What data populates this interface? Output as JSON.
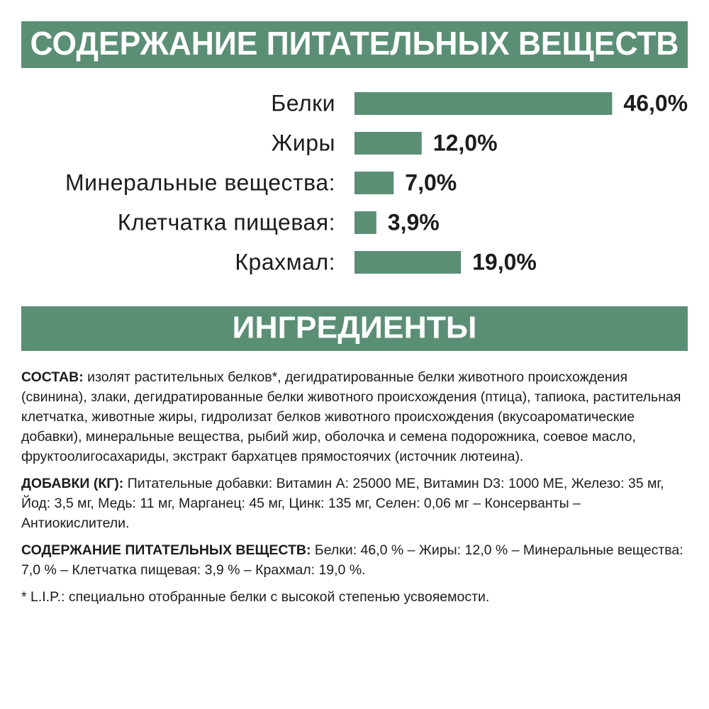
{
  "header": {
    "title": "СОДЕРЖАНИЕ ПИТАТЕЛЬНЫХ ВЕЩЕСТВ"
  },
  "chart_data": {
    "type": "bar",
    "orientation": "horizontal",
    "color": "#5b8f75",
    "categories": [
      "Белки",
      "Жиры",
      "Минеральные вещества:",
      "Клетчатка пищевая:",
      "Крахмал:"
    ],
    "values": [
      46.0,
      12.0,
      7.0,
      3.9,
      19.0
    ],
    "value_labels": [
      "46,0%",
      "12,0%",
      "7,0%",
      "3,9%",
      "19,0%"
    ]
  },
  "ingredients": {
    "title": "ИНГРЕДИЕНТЫ",
    "paragraphs": [
      {
        "label": "СОСТАВ:",
        "text": "изолят растительных белков*, дегидратированные белки животного происхождения (свинина), злаки, дегидратированные белки животного происхождения (птица), тапиока, растительная клетчатка, животные жиры, гидролизат белков животного происхождения (вкусоароматические добавки), минеральные вещества, рыбий жир, оболочка и семена подорожника, соевое масло, фруктоолигосахариды, экстракт бархатцев прямостоячих (источник лютеина)."
      },
      {
        "label": "ДОБАВКИ (КГ):",
        "text": "Питательные добавки: Витамин A: 25000 МЕ, Витамин D3: 1000 МЕ, Железо: 35 мг, Йод: 3,5 мг, Медь: 11 мг, Марганец: 45 мг, Цинк: 135 мг, Селен: 0,06 мг – Консерванты – Антиокислители."
      },
      {
        "label": "СОДЕРЖАНИЕ ПИТАТЕЛЬНЫХ ВЕЩЕСТВ:",
        "text": "Белки: 46,0 % – Жиры: 12,0 % – Минеральные вещества: 7,0 % – Клетчатка пищевая: 3,9 % – Крахмал: 19,0 %."
      }
    ],
    "footnote": "* L.I.P.: специально отобранные белки с высокой степенью усвояемости."
  }
}
